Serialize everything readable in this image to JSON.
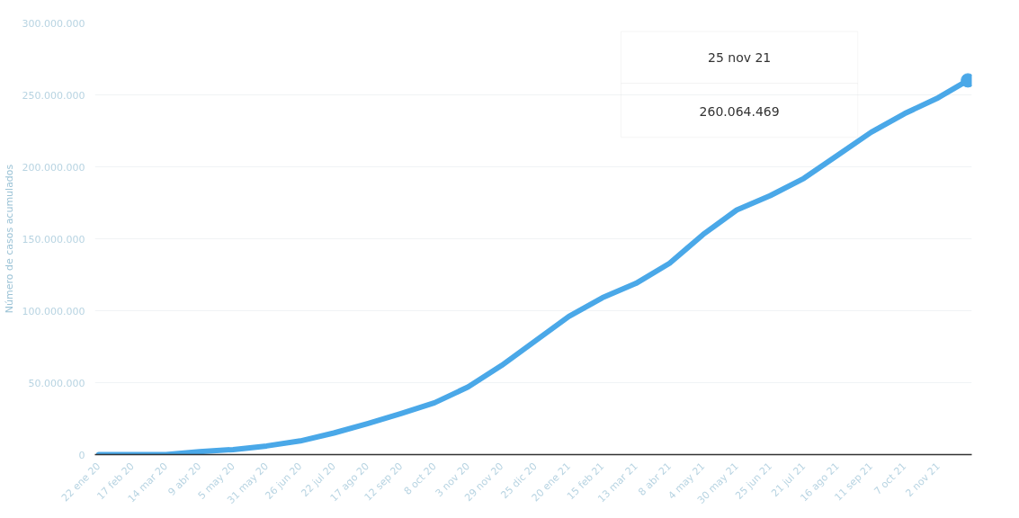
{
  "chart_data": {
    "type": "line",
    "ylabel": "Número de casos acumulados",
    "x": [
      "2020-01-22",
      "2020-02-17",
      "2020-03-14",
      "2020-04-09",
      "2020-05-05",
      "2020-05-31",
      "2020-06-26",
      "2020-07-22",
      "2020-08-17",
      "2020-09-12",
      "2020-10-08",
      "2020-11-03",
      "2020-11-29",
      "2020-12-25",
      "2021-01-20",
      "2021-02-15",
      "2021-03-13",
      "2021-04-08",
      "2021-05-04",
      "2021-05-30",
      "2021-06-25",
      "2021-07-21",
      "2021-08-16",
      "2021-09-11",
      "2021-10-07",
      "2021-11-02",
      "2021-11-25"
    ],
    "series": [
      {
        "color": "#4aa8e8",
        "values": [
          0,
          0,
          0,
          2000000,
          3500000,
          6000000,
          9500000,
          15000000,
          21500000,
          28500000,
          36000000,
          47000000,
          62000000,
          79000000,
          96000000,
          109000000,
          119000000,
          133000000,
          153000000,
          170000000,
          180000000,
          192000000,
          208000000,
          224000000,
          237000000,
          248000000,
          260064469
        ]
      }
    ],
    "xlim": [
      "2020-01-19",
      "2021-11-28"
    ],
    "xticks": [
      {
        "value": "2020-01-22",
        "label": "22 ene 20"
      },
      {
        "value": "2020-02-17",
        "label": "17 feb 20"
      },
      {
        "value": "2020-03-14",
        "label": "14 mar 20"
      },
      {
        "value": "2020-04-09",
        "label": "9 abr 20"
      },
      {
        "value": "2020-05-05",
        "label": "5 may 20"
      },
      {
        "value": "2020-05-31",
        "label": "31 may 20"
      },
      {
        "value": "2020-06-26",
        "label": "26 jun 20"
      },
      {
        "value": "2020-07-22",
        "label": "22 jul 20"
      },
      {
        "value": "2020-08-17",
        "label": "17 ago 20"
      },
      {
        "value": "2020-09-12",
        "label": "12 sep 20"
      },
      {
        "value": "2020-10-08",
        "label": "8 oct 20"
      },
      {
        "value": "2020-11-03",
        "label": "3 nov 20"
      },
      {
        "value": "2020-11-29",
        "label": "29 nov 20"
      },
      {
        "value": "2020-12-25",
        "label": "25 dic 20"
      },
      {
        "value": "2021-01-20",
        "label": "20 ene 21"
      },
      {
        "value": "2021-02-15",
        "label": "15 feb 21"
      },
      {
        "value": "2021-03-13",
        "label": "13 mar 21"
      },
      {
        "value": "2021-04-08",
        "label": "8 abr 21"
      },
      {
        "value": "2021-05-04",
        "label": "4 may 21"
      },
      {
        "value": "2021-05-30",
        "label": "30 may 21"
      },
      {
        "value": "2021-06-25",
        "label": "25 jun 21"
      },
      {
        "value": "2021-07-21",
        "label": "21 jul 21"
      },
      {
        "value": "2021-08-16",
        "label": "16 ago 21"
      },
      {
        "value": "2021-09-11",
        "label": "11 sep 21"
      },
      {
        "value": "2021-10-07",
        "label": "7 oct 21"
      },
      {
        "value": "2021-11-02",
        "label": "2 nov 21"
      }
    ],
    "ylim": [
      0,
      300000000
    ],
    "yticks": [
      0,
      {
        "value": 50000000,
        "label": "50.000.000"
      },
      {
        "value": 100000000,
        "label": "100.000.000"
      },
      {
        "value": 150000000,
        "label": "150.000.000"
      },
      {
        "value": 200000000,
        "label": "200.000.000"
      },
      {
        "value": 250000000,
        "label": "250.000.000"
      },
      {
        "value": 300000000,
        "label": "300.000.000"
      }
    ],
    "grid": "y",
    "annotations": [
      "25 nov 21",
      "260.064.469"
    ]
  }
}
